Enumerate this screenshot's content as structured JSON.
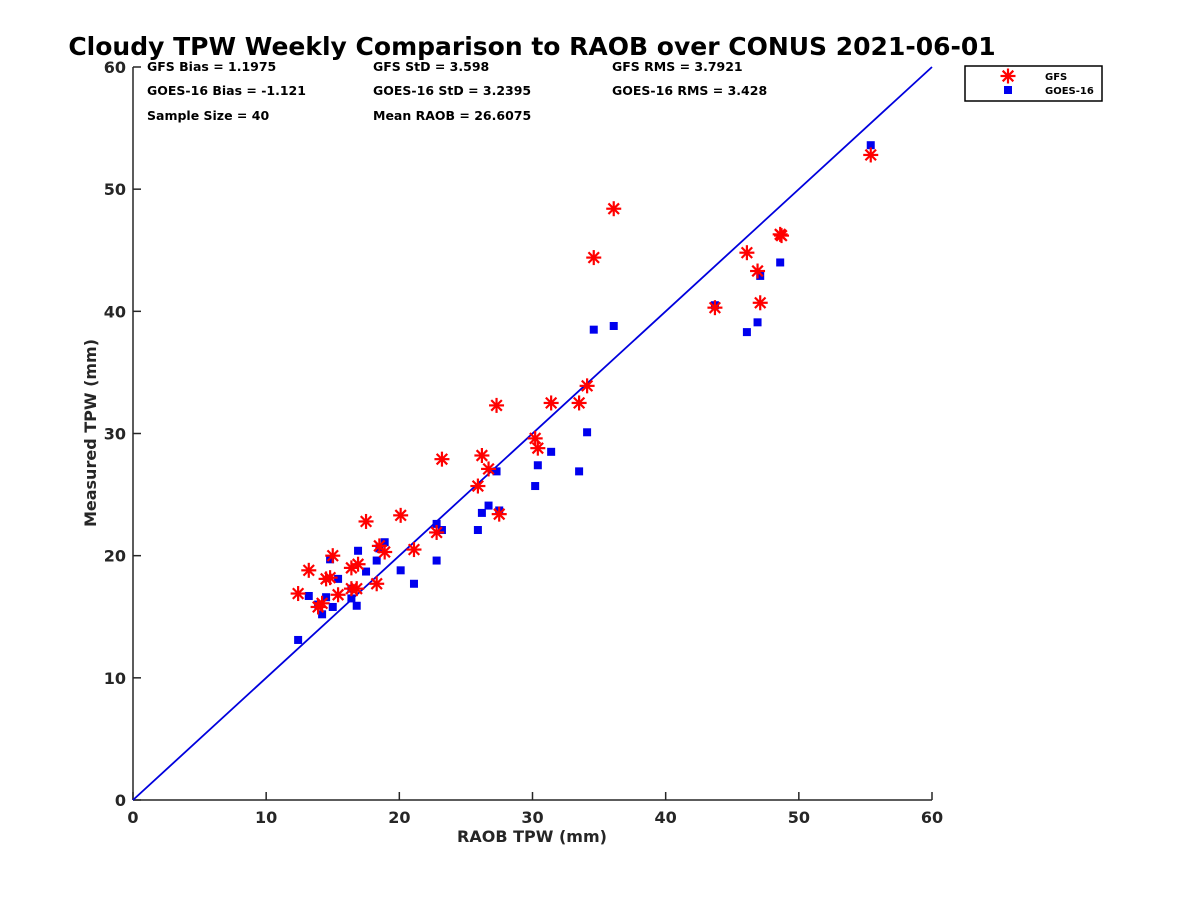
{
  "chart_data": {
    "type": "scatter",
    "title": "Cloudy TPW Weekly Comparison to RAOB over CONUS 2021-06-01",
    "xlabel": "RAOB TPW (mm)",
    "ylabel": "Measured TPW (mm)",
    "xlim": [
      0,
      60
    ],
    "ylim": [
      0,
      60
    ],
    "x_ticks": [
      "0",
      "10",
      "20",
      "30",
      "40",
      "50",
      "60"
    ],
    "y_ticks": [
      "0",
      "10",
      "20",
      "30",
      "40",
      "50",
      "60"
    ],
    "grid": false,
    "legend_position": "top-right outside",
    "stats": [
      [
        "GFS Bias = 1.1975",
        "GFS StD = 3.598",
        "GFS RMS = 3.7921"
      ],
      [
        "GOES-16 Bias = -1.121",
        "GOES-16 StD = 3.2395",
        "GOES-16 RMS = 3.428"
      ],
      [
        "Sample Size = 40",
        "Mean RAOB = 26.6075",
        ""
      ]
    ],
    "reference_line": {
      "x": [
        0,
        60
      ],
      "y": [
        0,
        60
      ],
      "color": "#0000dd"
    },
    "series": [
      {
        "name": "GFS",
        "marker": "asterisk",
        "color": "#ff0000",
        "points": [
          [
            12.4,
            16.9
          ],
          [
            13.2,
            18.8
          ],
          [
            13.9,
            15.8
          ],
          [
            14.2,
            16.1
          ],
          [
            14.5,
            18.1
          ],
          [
            14.8,
            18.2
          ],
          [
            15.0,
            20.0
          ],
          [
            15.4,
            16.8
          ],
          [
            16.4,
            17.3
          ],
          [
            16.4,
            19.0
          ],
          [
            16.8,
            17.3
          ],
          [
            16.9,
            19.3
          ],
          [
            17.5,
            22.8
          ],
          [
            18.3,
            17.7
          ],
          [
            18.5,
            20.8
          ],
          [
            18.9,
            20.3
          ],
          [
            20.1,
            23.3
          ],
          [
            21.1,
            20.5
          ],
          [
            22.8,
            21.9
          ],
          [
            23.2,
            27.9
          ],
          [
            25.9,
            25.7
          ],
          [
            26.2,
            28.2
          ],
          [
            26.7,
            27.1
          ],
          [
            27.3,
            32.3
          ],
          [
            27.5,
            23.4
          ],
          [
            30.2,
            29.6
          ],
          [
            30.4,
            28.8
          ],
          [
            31.4,
            32.5
          ],
          [
            33.5,
            32.5
          ],
          [
            34.1,
            33.9
          ],
          [
            34.6,
            44.4
          ],
          [
            36.1,
            48.4
          ],
          [
            43.7,
            40.3
          ],
          [
            46.1,
            44.8
          ],
          [
            46.9,
            43.3
          ],
          [
            47.1,
            40.7
          ],
          [
            48.6,
            46.3
          ],
          [
            48.7,
            46.2
          ],
          [
            55.4,
            52.8
          ]
        ]
      },
      {
        "name": "GOES-16",
        "marker": "square",
        "color": "#0000ee",
        "points": [
          [
            12.4,
            13.1
          ],
          [
            13.2,
            16.7
          ],
          [
            13.9,
            16.0
          ],
          [
            14.2,
            15.2
          ],
          [
            14.5,
            16.6
          ],
          [
            14.8,
            19.7
          ],
          [
            15.0,
            15.8
          ],
          [
            15.4,
            18.1
          ],
          [
            16.4,
            16.5
          ],
          [
            16.4,
            17.3
          ],
          [
            16.8,
            15.9
          ],
          [
            16.9,
            20.4
          ],
          [
            17.5,
            18.7
          ],
          [
            18.3,
            19.6
          ],
          [
            18.5,
            20.6
          ],
          [
            18.9,
            21.1
          ],
          [
            20.1,
            18.8
          ],
          [
            21.1,
            17.7
          ],
          [
            22.8,
            22.6
          ],
          [
            22.8,
            19.6
          ],
          [
            23.2,
            22.1
          ],
          [
            25.9,
            22.1
          ],
          [
            26.2,
            23.5
          ],
          [
            26.7,
            24.1
          ],
          [
            27.3,
            26.9
          ],
          [
            27.5,
            23.7
          ],
          [
            30.2,
            25.7
          ],
          [
            30.4,
            27.4
          ],
          [
            31.4,
            28.5
          ],
          [
            33.5,
            26.9
          ],
          [
            34.1,
            30.1
          ],
          [
            34.6,
            38.5
          ],
          [
            36.1,
            38.8
          ],
          [
            43.7,
            40.5
          ],
          [
            46.1,
            38.3
          ],
          [
            46.9,
            39.1
          ],
          [
            47.1,
            42.9
          ],
          [
            48.6,
            44.0
          ],
          [
            55.4,
            53.6
          ]
        ]
      }
    ]
  }
}
